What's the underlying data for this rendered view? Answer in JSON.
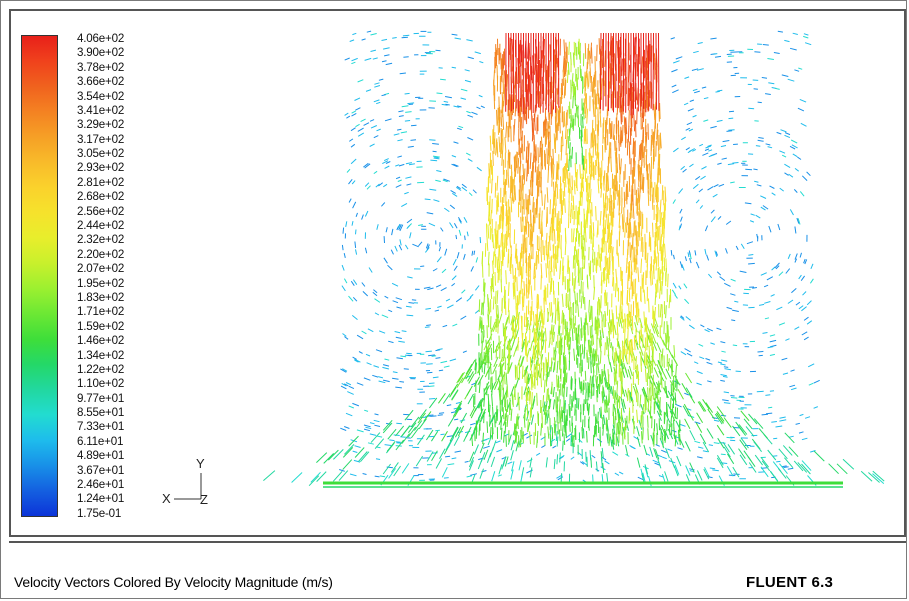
{
  "legend": {
    "labels": [
      "4.06e+02",
      "3.90e+02",
      "3.78e+02",
      "3.66e+02",
      "3.54e+02",
      "3.41e+02",
      "3.29e+02",
      "3.17e+02",
      "3.05e+02",
      "2.93e+02",
      "2.81e+02",
      "2.68e+02",
      "2.56e+02",
      "2.44e+02",
      "2.32e+02",
      "2.20e+02",
      "2.07e+02",
      "1.95e+02",
      "1.83e+02",
      "1.71e+02",
      "1.59e+02",
      "1.46e+02",
      "1.34e+02",
      "1.22e+02",
      "1.10e+02",
      "9.77e+01",
      "8.55e+01",
      "7.33e+01",
      "6.11e+01",
      "4.89e+01",
      "3.67e+01",
      "2.46e+01",
      "1.24e+01",
      "1.75e-01"
    ],
    "colors": [
      "#e8201a",
      "#f0421c",
      "#f0621e",
      "#f48222",
      "#f6a026",
      "#f8bb2a",
      "#fad22c",
      "#f6e22c",
      "#e8ee2c",
      "#c8f02c",
      "#9cf030",
      "#6ce834",
      "#3ede3a",
      "#24d868",
      "#22d8a0",
      "#22dcd0",
      "#1ebcec",
      "#1890e8",
      "#1460e0",
      "#0c34d8"
    ]
  },
  "axes": {
    "y": "Y",
    "x": "X",
    "z": "Z"
  },
  "caption": {
    "title": "Velocity Vectors Colored By Velocity Magnitude (m/s)",
    "brand": "FLUENT",
    "version": "6.3"
  },
  "plot": {
    "max_magnitude": 406,
    "min_magnitude": 0.175
  }
}
